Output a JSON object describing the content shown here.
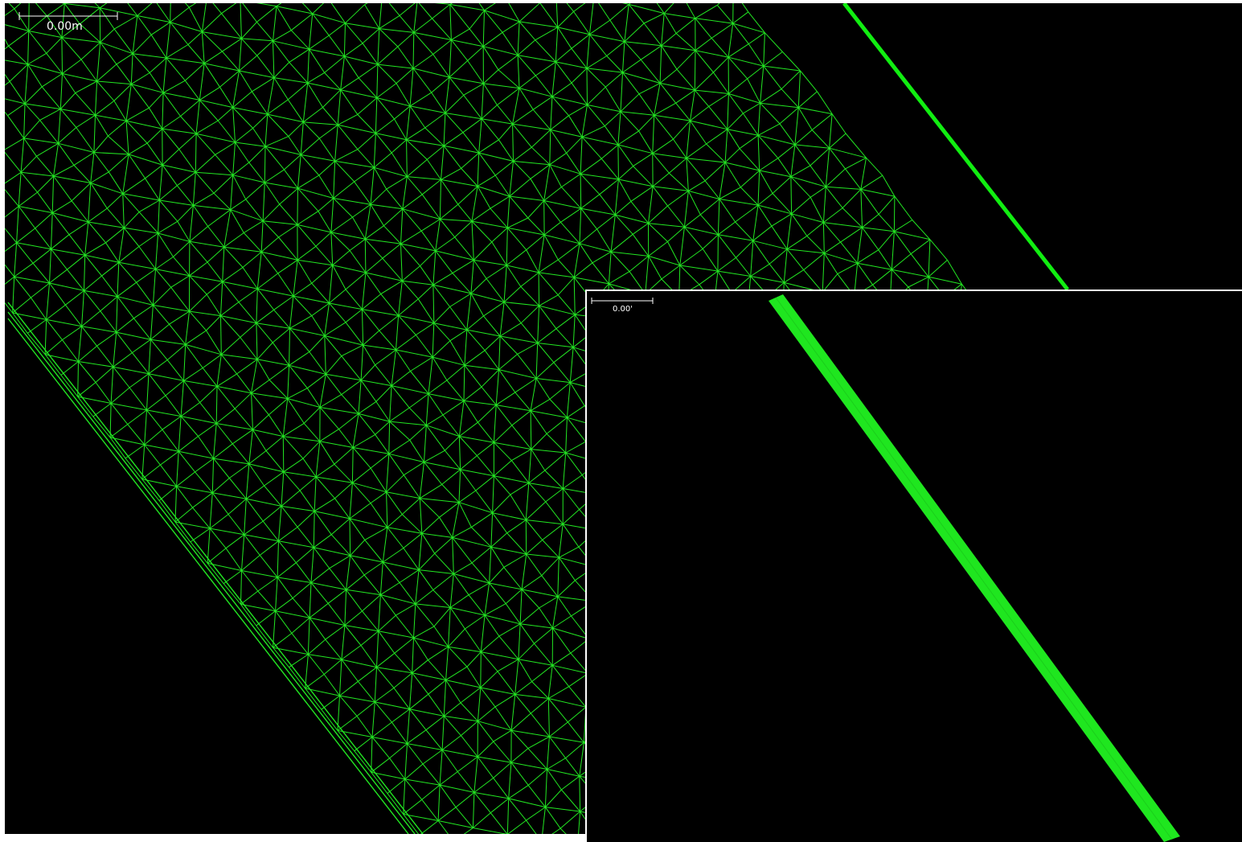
{
  "main_view": {
    "scale_bar_label": "0.00m",
    "mesh_color": "#22e622",
    "edge_color": "#11ee11"
  },
  "inset_view": {
    "scale_bar_label": "0.00'",
    "strip_color": "#1fe61f"
  }
}
